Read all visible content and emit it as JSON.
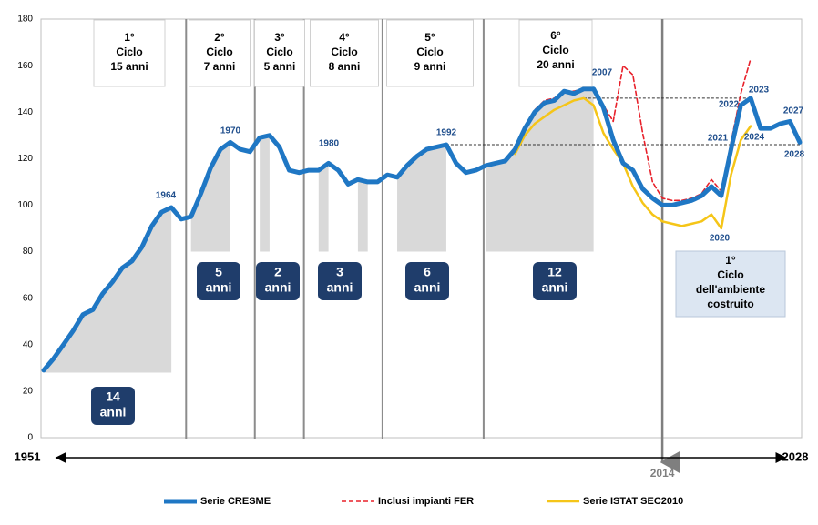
{
  "chart_data": {
    "type": "line",
    "x": [
      1951,
      1952,
      1953,
      1954,
      1955,
      1956,
      1957,
      1958,
      1959,
      1960,
      1961,
      1962,
      1963,
      1964,
      1965,
      1966,
      1967,
      1968,
      1969,
      1970,
      1971,
      1972,
      1973,
      1974,
      1975,
      1976,
      1977,
      1978,
      1979,
      1980,
      1981,
      1982,
      1983,
      1984,
      1985,
      1986,
      1987,
      1988,
      1989,
      1990,
      1991,
      1992,
      1993,
      1994,
      1995,
      1996,
      1997,
      1998,
      1999,
      2000,
      2001,
      2002,
      2003,
      2004,
      2005,
      2006,
      2007,
      2008,
      2009,
      2010,
      2011,
      2012,
      2013,
      2014,
      2015,
      2016,
      2017,
      2018,
      2019,
      2020,
      2021,
      2022,
      2023,
      2024,
      2025,
      2026,
      2027,
      2028
    ],
    "series": [
      {
        "name": "Serie CRESME",
        "color": "#1f77c4",
        "dash": false,
        "width": 5,
        "values": [
          29,
          34,
          40,
          46,
          53,
          55,
          62,
          67,
          73,
          76,
          82,
          91,
          97,
          99,
          94,
          95,
          105,
          116,
          124,
          127,
          124,
          123,
          129,
          130,
          125,
          115,
          114,
          115,
          115,
          118,
          115,
          109,
          111,
          110,
          110,
          113,
          112,
          117,
          121,
          124,
          125,
          126,
          118,
          114,
          115,
          117,
          118,
          119,
          124,
          133,
          140,
          144,
          145,
          149,
          148,
          150,
          150,
          142,
          128,
          118,
          115,
          107,
          103,
          100,
          100,
          101,
          102,
          104,
          108,
          104,
          124,
          143,
          146,
          133,
          133,
          135,
          136,
          127
        ]
      },
      {
        "name": "Inclusi impianti FER",
        "color": "#e8202a",
        "dash": true,
        "width": 1.6,
        "values": [
          null,
          null,
          null,
          null,
          null,
          null,
          null,
          null,
          null,
          null,
          null,
          null,
          null,
          null,
          null,
          null,
          null,
          null,
          null,
          null,
          null,
          null,
          null,
          null,
          null,
          null,
          null,
          null,
          null,
          null,
          null,
          null,
          null,
          null,
          null,
          null,
          null,
          null,
          null,
          null,
          null,
          null,
          null,
          null,
          null,
          null,
          null,
          null,
          null,
          133,
          141,
          145,
          146,
          149,
          149,
          150,
          150,
          143,
          136,
          160,
          156,
          131,
          110,
          103,
          102,
          102,
          103,
          105,
          111,
          106,
          127,
          148,
          163,
          null,
          null,
          null,
          null,
          null
        ]
      },
      {
        "name": "Serie ISTAT SEC2010",
        "color": "#f5c518",
        "dash": false,
        "width": 2.5,
        "values": [
          null,
          null,
          null,
          null,
          null,
          null,
          null,
          null,
          null,
          null,
          null,
          null,
          null,
          null,
          null,
          null,
          null,
          null,
          null,
          null,
          null,
          null,
          null,
          null,
          null,
          null,
          null,
          null,
          null,
          null,
          null,
          null,
          null,
          null,
          null,
          null,
          null,
          null,
          null,
          null,
          null,
          null,
          null,
          null,
          null,
          null,
          null,
          null,
          122,
          130,
          135,
          138,
          141,
          143,
          145,
          146,
          143,
          131,
          124,
          118,
          108,
          101,
          96,
          93,
          92,
          91,
          92,
          93,
          96,
          90,
          113,
          128,
          134,
          null,
          null,
          null,
          null,
          null
        ]
      }
    ],
    "xlim": [
      1951,
      2028
    ],
    "ylim": [
      0,
      180
    ],
    "yticks": [
      0,
      20,
      40,
      60,
      80,
      100,
      120,
      140,
      160,
      180
    ],
    "marker_year": 2014,
    "cycle_lines": [
      1965.5,
      1972.5,
      1977.5,
      1985.5,
      1995.8
    ],
    "reference_lines": [
      {
        "value": 146,
        "from": 2006,
        "to": 2023
      },
      {
        "value": 126,
        "from": 1992,
        "to": 2028
      }
    ],
    "shading": [
      {
        "from": 1951,
        "to": 1964,
        "base": 28
      },
      {
        "from": 1966,
        "to": 1970,
        "base": 80
      },
      {
        "from": 1973,
        "to": 1974,
        "base": 80
      },
      {
        "from": 1979,
        "to": 1980,
        "base": 80
      },
      {
        "from": 1983,
        "to": 1984,
        "base": 80
      },
      {
        "from": 1987,
        "to": 1992,
        "base": 80
      },
      {
        "from": 1996,
        "to": 2007,
        "base": 80
      }
    ],
    "cycles": [
      [
        "1°",
        "Ciclo",
        "15 anni"
      ],
      [
        "2°",
        "Ciclo",
        "7 anni"
      ],
      [
        "3°",
        "Ciclo",
        "5 anni"
      ],
      [
        "4°",
        "Ciclo",
        "8 anni"
      ],
      [
        "5°",
        "Ciclo",
        "9 anni"
      ],
      [
        "6°",
        "Ciclo",
        "20 anni"
      ]
    ],
    "durations": [
      [
        "14",
        "anni"
      ],
      [
        "5",
        "anni"
      ],
      [
        "2",
        "anni"
      ],
      [
        "3",
        "anni"
      ],
      [
        "6",
        "anni"
      ],
      [
        "12",
        "anni"
      ]
    ],
    "built_environment_cycle": [
      "1°",
      "Ciclo",
      "dell'ambiente",
      "costruito"
    ],
    "point_labels": [
      "1964",
      "1970",
      "1980",
      "1992",
      "2007",
      "2020",
      "2021",
      "2022",
      "2023",
      "2024",
      "2027",
      "2028"
    ]
  }
}
